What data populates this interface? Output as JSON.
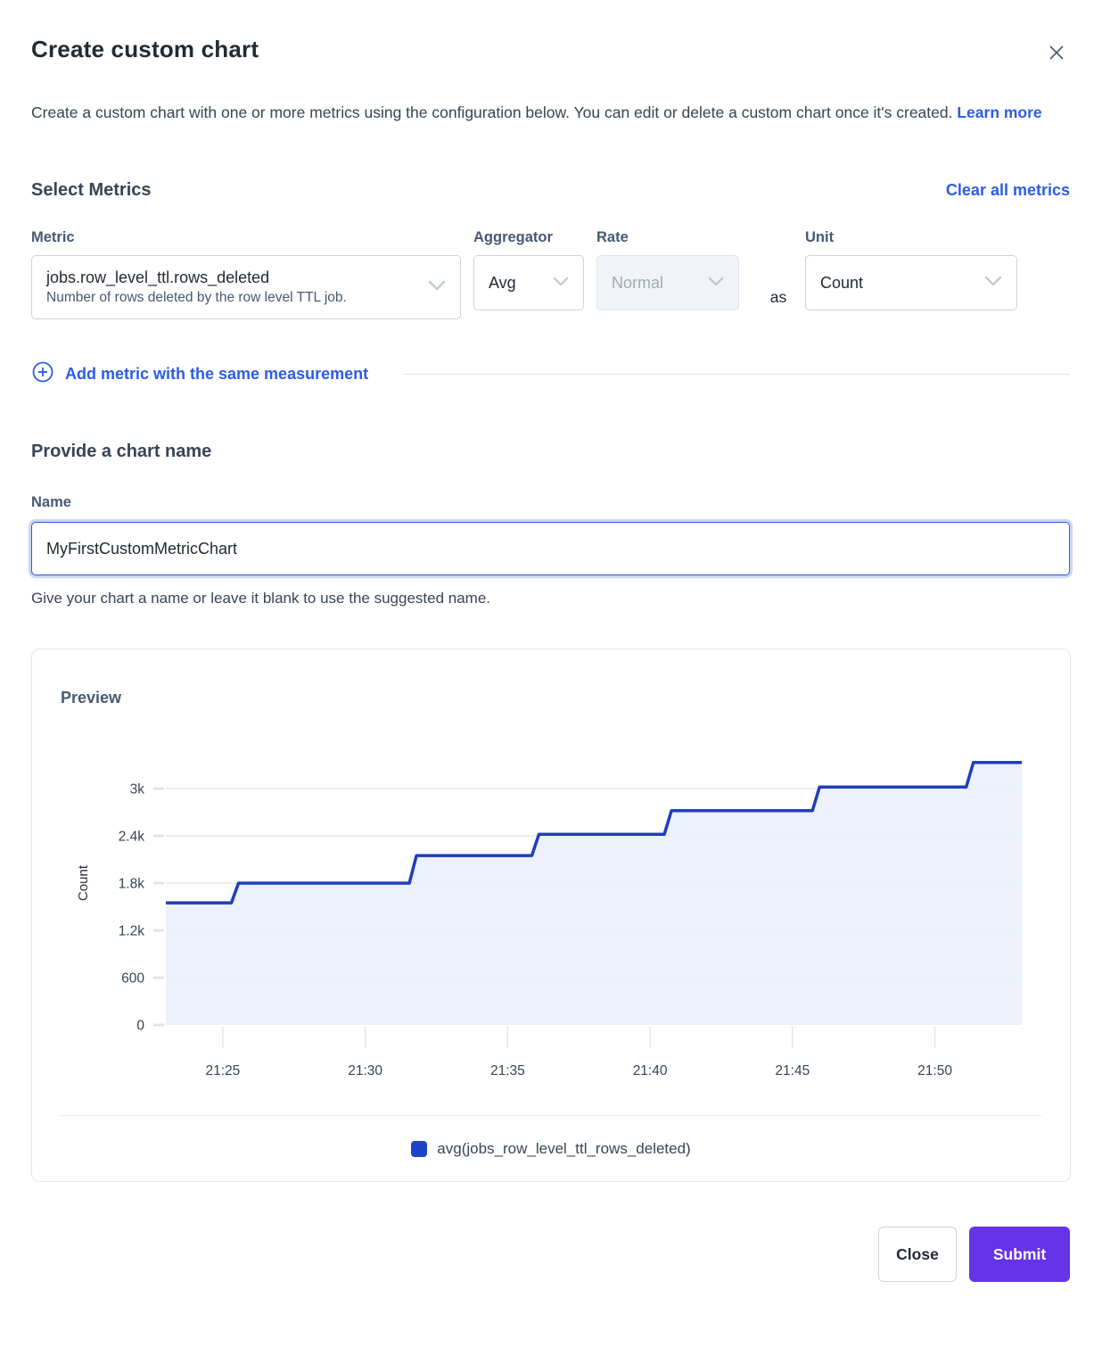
{
  "modal": {
    "title": "Create custom chart",
    "description": "Create a custom chart with one or more metrics using the configuration below. You can edit or delete a custom chart once it's created.",
    "learn_more_label": "Learn more"
  },
  "metrics_section": {
    "heading": "Select Metrics",
    "clear_all_label": "Clear all metrics",
    "metric": {
      "label": "Metric",
      "value": "jobs.row_level_ttl.rows_deleted",
      "description": "Number of rows deleted by the row level TTL job."
    },
    "aggregator": {
      "label": "Aggregator",
      "value": "Avg"
    },
    "rate": {
      "label": "Rate",
      "value": "Normal",
      "state": "disabled"
    },
    "as_text": "as",
    "unit": {
      "label": "Unit",
      "value": "Count"
    },
    "add_metric_label": "Add metric with the same measurement"
  },
  "name_section": {
    "heading": "Provide a chart name",
    "label": "Name",
    "value": "MyFirstCustomMetricChart",
    "helper": "Give your chart a name or leave it blank to use the suggested name."
  },
  "preview": {
    "heading": "Preview",
    "legend_label": "avg(jobs_row_level_ttl_rows_deleted)"
  },
  "footer": {
    "close_label": "Close",
    "submit_label": "Submit"
  },
  "icons": {
    "close": "x-mark",
    "chevron": "chevron-down",
    "add": "plus-circle"
  },
  "colors": {
    "accent_link": "#2d5ce6",
    "line": "#1e3fba",
    "area_fill": "#e9effc",
    "legend_swatch": "#1d43c8",
    "grid": "#e4e8ef",
    "tick": "#dfe4ec",
    "axis_text": "#394455",
    "submit_bg": "#6633e8",
    "disabled_bg": "#f0f3f7",
    "disabled_text": "#a2aab6"
  },
  "chart_data": {
    "type": "area",
    "step": true,
    "title": "Preview",
    "xlabel": "",
    "ylabel": "Count",
    "x_unit": "minutes after 21:00",
    "xlim_minutes": [
      23.0,
      53.05
    ],
    "ylim": [
      0,
      3600
    ],
    "grid": true,
    "legend_position": "bottom",
    "y_ticks": [
      {
        "v": 0,
        "label": "0"
      },
      {
        "v": 600,
        "label": "600"
      },
      {
        "v": 1200,
        "label": "1.2k"
      },
      {
        "v": 1800,
        "label": "1.8k"
      },
      {
        "v": 2400,
        "label": "2.4k"
      },
      {
        "v": 3000,
        "label": "3k"
      }
    ],
    "x_ticks": [
      {
        "min": 25,
        "label": "21:25"
      },
      {
        "min": 30,
        "label": "21:30"
      },
      {
        "min": 35,
        "label": "21:35"
      },
      {
        "min": 40,
        "label": "21:40"
      },
      {
        "min": 45,
        "label": "21:45"
      },
      {
        "min": 50,
        "label": "21:50"
      }
    ],
    "series": [
      {
        "name": "avg(jobs_row_level_ttl_rows_deleted)",
        "steps": [
          {
            "from": 23.0,
            "to": 25.3,
            "value": 1550
          },
          {
            "from": 25.55,
            "to": 31.55,
            "value": 1800
          },
          {
            "from": 31.8,
            "to": 35.85,
            "value": 2150
          },
          {
            "from": 36.1,
            "to": 40.5,
            "value": 2420
          },
          {
            "from": 40.75,
            "to": 45.7,
            "value": 2720
          },
          {
            "from": 45.95,
            "to": 51.1,
            "value": 3020
          },
          {
            "from": 51.35,
            "to": 53.05,
            "value": 3330
          }
        ]
      }
    ]
  }
}
